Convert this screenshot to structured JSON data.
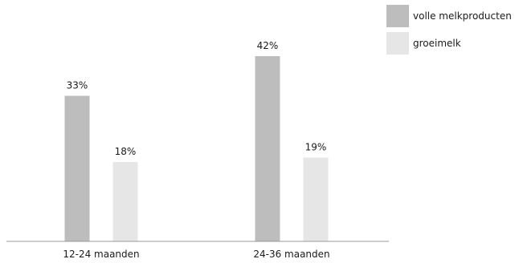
{
  "chart_data": {
    "type": "bar",
    "categories": [
      "12-24 maanden",
      "24-36 maanden"
    ],
    "series": [
      {
        "name": "volle melkproducten",
        "values": [
          33,
          42
        ],
        "labels": [
          "33%",
          "42%"
        ],
        "color": "#bdbdbd"
      },
      {
        "name": "groeimelk",
        "values": [
          18,
          19
        ],
        "labels": [
          "18%",
          "19%"
        ],
        "color": "#e6e6e6"
      }
    ],
    "unit": "%",
    "ylim": [
      0,
      50
    ],
    "grid": false,
    "legend": "top-right",
    "axis_color": "#999999"
  }
}
